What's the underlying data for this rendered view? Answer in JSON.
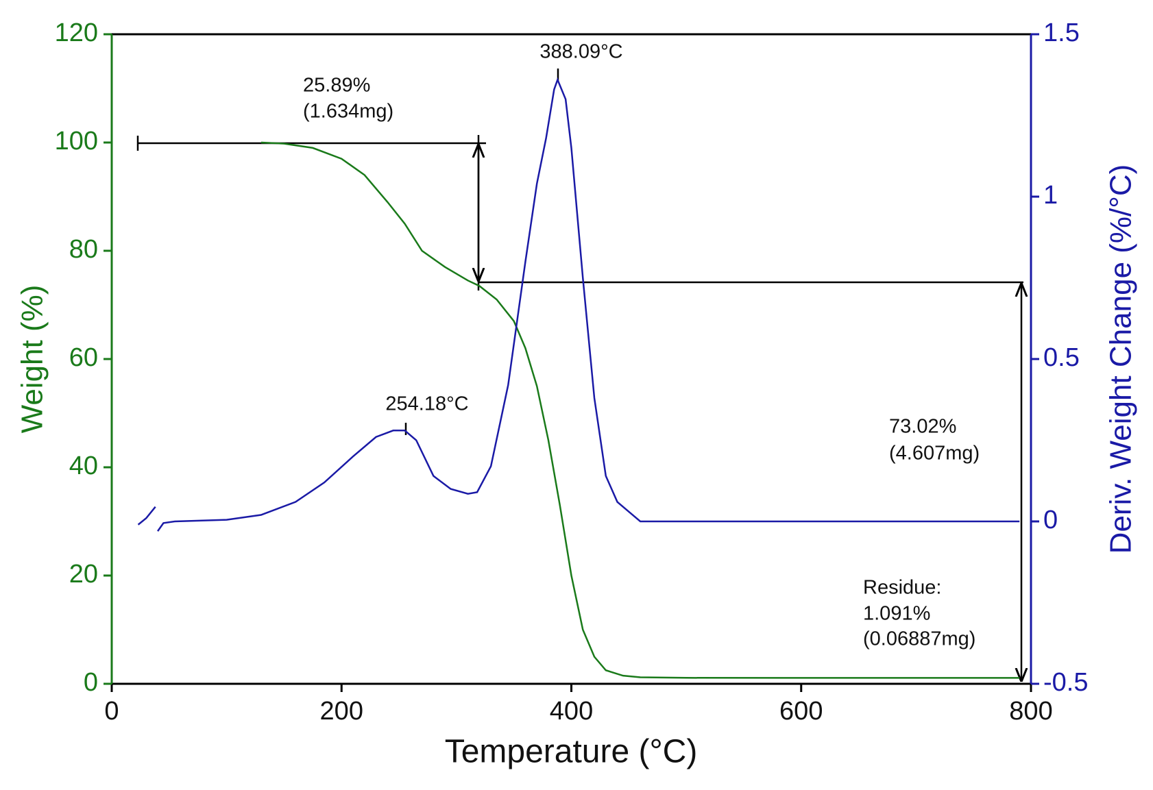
{
  "chart_data": {
    "type": "line",
    "xlabel": "Temperature (°C)",
    "ylabel": "Weight (%)",
    "y2label": "Deriv. Weight Change (%/°C)",
    "xlim": [
      0,
      800
    ],
    "xticks": [
      0,
      200,
      400,
      600,
      800
    ],
    "ylim": [
      0,
      120
    ],
    "yticks": [
      0,
      20,
      40,
      60,
      80,
      100,
      120
    ],
    "y2lim": [
      -0.5,
      1.5
    ],
    "y2ticks": [
      -0.5,
      0.0,
      0.5,
      1.0,
      1.5
    ],
    "series": [
      {
        "name": "Weight",
        "color": "#1a7a1a",
        "x": [
          130,
          150,
          175,
          200,
          220,
          240,
          255,
          270,
          290,
          310,
          320,
          335,
          350,
          360,
          370,
          380,
          390,
          400,
          410,
          420,
          430,
          445,
          460,
          500,
          790
        ],
        "values": [
          100,
          99.8,
          99,
          97,
          94,
          89,
          85,
          80,
          77,
          74.5,
          73.5,
          71,
          67,
          62,
          55,
          45,
          33,
          20,
          10,
          5,
          2.5,
          1.5,
          1.2,
          1.1,
          1.09
        ]
      },
      {
        "name": "Deriv. Weight Change",
        "color": "#1a1aa6",
        "axis": "y2",
        "x": [
          23,
          30,
          38,
          39,
          40,
          45,
          55,
          100,
          130,
          160,
          185,
          210,
          230,
          245,
          255,
          265,
          280,
          295,
          310,
          318,
          330,
          345,
          360,
          370,
          378,
          385,
          388,
          395,
          400,
          410,
          420,
          430,
          440,
          450,
          460,
          500,
          600,
          700,
          790
        ],
        "values": [
          -0.01,
          0.01,
          0.045,
          null,
          -0.03,
          -0.005,
          0.0,
          0.005,
          0.02,
          0.06,
          0.12,
          0.2,
          0.26,
          0.28,
          0.28,
          0.25,
          0.14,
          0.1,
          0.085,
          0.09,
          0.17,
          0.42,
          0.8,
          1.04,
          1.18,
          1.33,
          1.36,
          1.3,
          1.15,
          0.75,
          0.38,
          0.14,
          0.06,
          0.03,
          0.0,
          0.0,
          0.0,
          0.0,
          0.0
        ]
      }
    ],
    "annotations": [
      "388.09°C",
      "254.18°C",
      "25.89%",
      "(1.634mg)",
      "73.02%",
      "(4.607mg)",
      "Residue:",
      "1.091%",
      "(0.06887mg)"
    ]
  }
}
